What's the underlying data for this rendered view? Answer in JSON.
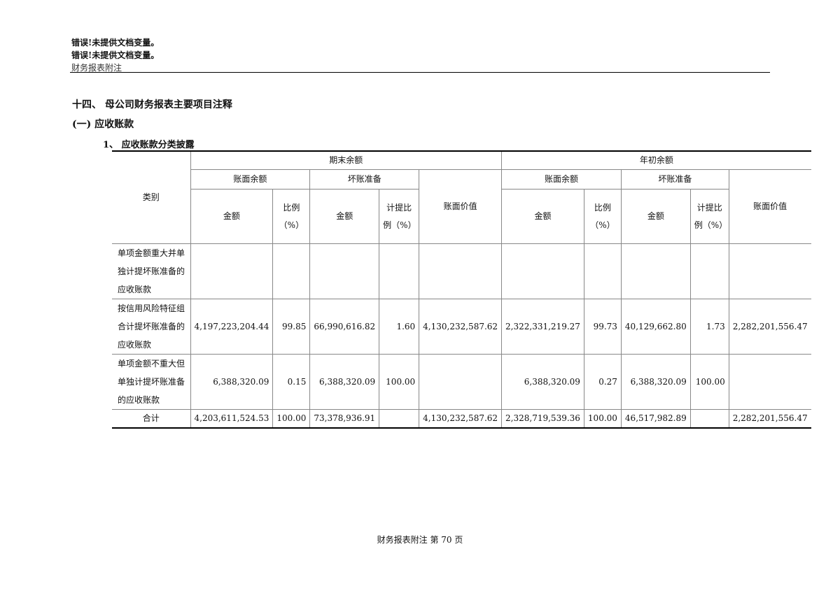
{
  "header": {
    "line1": "错误!未提供文档变量。",
    "line2": "错误!未提供文档变量。",
    "line3": "财务报表附注"
  },
  "sections": {
    "s1": "十四、  母公司财务报表主要项目注释",
    "s2": "(一)     应收账款",
    "s3": "1、    应收账款分类披露"
  },
  "table": {
    "category_header": "类别",
    "period_end": "期末余额",
    "period_start": "年初余额",
    "book_balance": "账面余额",
    "bad_debt": "坏账准备",
    "book_value": "账面价值",
    "amount": "金额",
    "ratio": "比例（%）",
    "accrual_ratio": "计提比例（%）",
    "rows": [
      {
        "category": "单项金额重大并单独计提坏账准备的应收账款",
        "values": [
          "",
          "",
          "",
          "",
          "",
          "",
          "",
          "",
          "",
          ""
        ]
      },
      {
        "category": "按信用风险特征组合计提坏账准备的应收账款",
        "values": [
          "4,197,223,204.44",
          "99.85",
          "66,990,616.82",
          "1.60",
          "4,130,232,587.62",
          "2,322,331,219.27",
          "99.73",
          "40,129,662.80",
          "1.73",
          "2,282,201,556.47"
        ]
      },
      {
        "category": "单项金额不重大但单独计提坏账准备的应收账款",
        "values": [
          "6,388,320.09",
          "0.15",
          "6,388,320.09",
          "100.00",
          "",
          "6,388,320.09",
          "0.27",
          "6,388,320.09",
          "100.00",
          ""
        ]
      },
      {
        "category": "合计",
        "values": [
          "4,203,611,524.53",
          "100.00",
          "73,378,936.91",
          "",
          "4,130,232,587.62",
          "2,328,719,539.36",
          "100.00",
          "46,517,982.89",
          "",
          "2,282,201,556.47"
        ]
      }
    ]
  },
  "footer": "财务报表附注  第 70 页"
}
